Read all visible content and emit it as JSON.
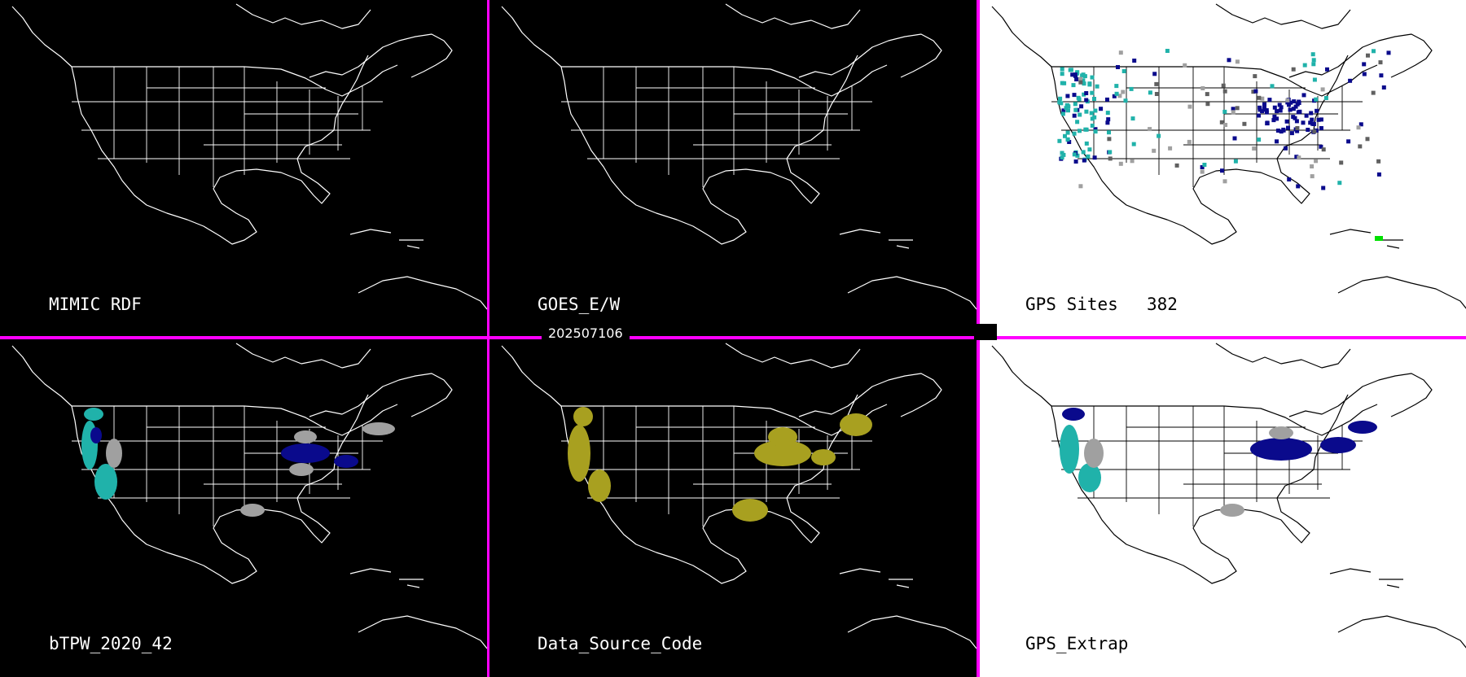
{
  "timestamp": "202507106",
  "colors": {
    "divider": "#ff00ff",
    "cyan": "#20b2aa",
    "navy": "#0a0a8c",
    "gray": "#a0a0a0",
    "olive": "#a8a020",
    "green": "#00e000"
  },
  "panels": [
    {
      "id": "mimic-rdf",
      "label": "MIMIC RDF",
      "theme": "dark"
    },
    {
      "id": "goes-ew",
      "label": "GOES_E/W",
      "theme": "dark"
    },
    {
      "id": "gps-sites",
      "label": "GPS Sites",
      "count": "382",
      "theme": "light"
    },
    {
      "id": "btpw",
      "label": "bTPW_2020_42",
      "theme": "dark"
    },
    {
      "id": "data-source-code",
      "label": "Data_Source_Code",
      "theme": "dark"
    },
    {
      "id": "gps-extrap",
      "label": "GPS_Extrap",
      "theme": "light"
    }
  ]
}
